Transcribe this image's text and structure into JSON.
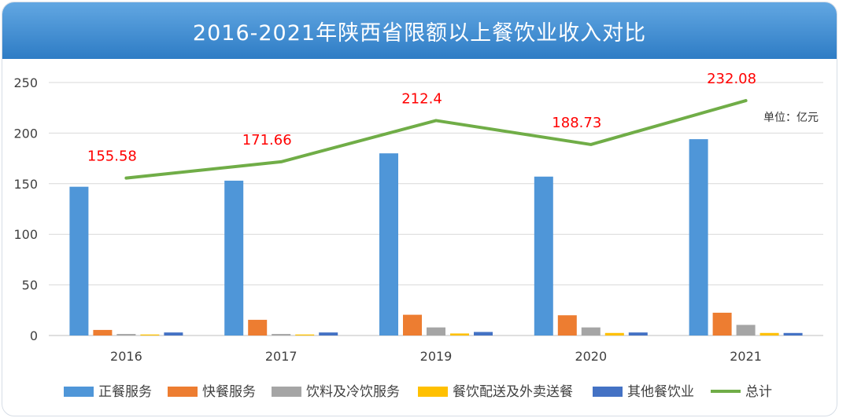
{
  "chart_data": {
    "type": "bar",
    "title": "2016-2021年陕西省限额以上餐饮业收入对比",
    "unit_note": "单位：亿元",
    "categories": [
      "2016",
      "2017",
      "2019",
      "2020",
      "2021"
    ],
    "ylim": [
      0,
      250
    ],
    "yticks": [
      "0",
      "50",
      "100",
      "150",
      "200",
      "250"
    ],
    "grid": true,
    "legend_position": "bottom",
    "series": [
      {
        "name": "正餐服务",
        "kind": "bar",
        "color": "#4f96d8",
        "values": [
          147,
          153,
          180,
          157,
          194
        ]
      },
      {
        "name": "快餐服务",
        "kind": "bar",
        "color": "#ed7d31",
        "values": [
          5.5,
          15.5,
          20.5,
          20,
          22.5
        ]
      },
      {
        "name": "饮料及冷饮服务",
        "kind": "bar",
        "color": "#a5a5a5",
        "values": [
          1.5,
          1.5,
          8,
          8,
          10.5
        ]
      },
      {
        "name": "餐饮配送及外卖送餐",
        "kind": "bar",
        "color": "#ffc000",
        "values": [
          1,
          1,
          2,
          2.5,
          2.5
        ]
      },
      {
        "name": "其他餐饮业",
        "kind": "bar",
        "color": "#4472c4",
        "values": [
          3,
          3,
          3.5,
          3,
          2.5
        ]
      },
      {
        "name": "总计",
        "kind": "line",
        "color": "#70ad47",
        "values": [
          155.58,
          171.66,
          212.4,
          188.73,
          232.08
        ],
        "labels": [
          "155.58",
          "171.66",
          "212.4",
          "188.73",
          "232.08"
        ],
        "label_color": "#ff0000"
      }
    ]
  }
}
